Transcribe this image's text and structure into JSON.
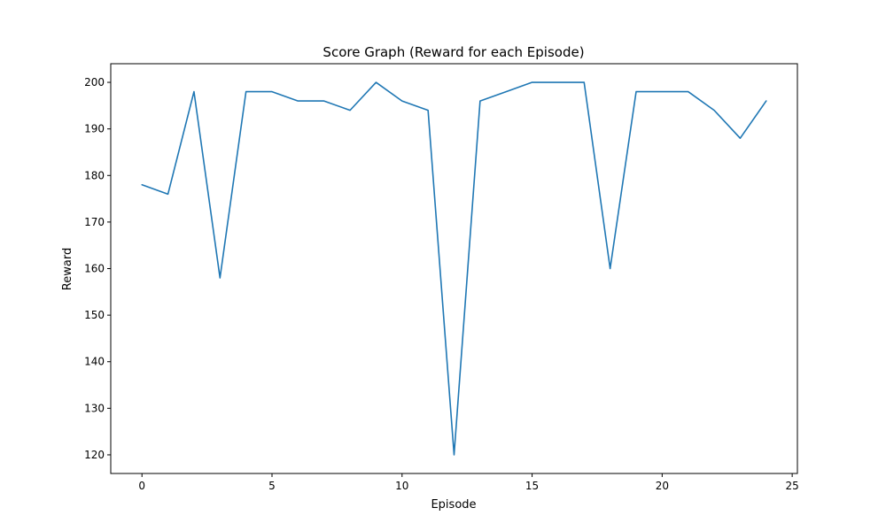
{
  "chart_data": {
    "type": "line",
    "title": "Score Graph (Reward for each Episode)",
    "xlabel": "Episode",
    "ylabel": "Reward",
    "xlim": [
      -1.2,
      25.2
    ],
    "ylim": [
      116,
      204
    ],
    "xticks": [
      0,
      5,
      10,
      15,
      20,
      25
    ],
    "yticks": [
      120,
      130,
      140,
      150,
      160,
      170,
      180,
      190,
      200
    ],
    "grid": false,
    "series": [
      {
        "color": "#1f77b4",
        "x": [
          0,
          1,
          2,
          3,
          4,
          5,
          6,
          7,
          8,
          9,
          10,
          11,
          12,
          13,
          14,
          15,
          16,
          17,
          18,
          19,
          20,
          21,
          22,
          23,
          24
        ],
        "values": [
          178,
          176,
          198,
          158,
          198,
          198,
          196,
          196,
          194,
          200,
          196,
          194,
          120,
          196,
          198,
          200,
          200,
          200,
          160,
          198,
          198,
          198,
          194,
          188,
          196
        ]
      }
    ]
  }
}
